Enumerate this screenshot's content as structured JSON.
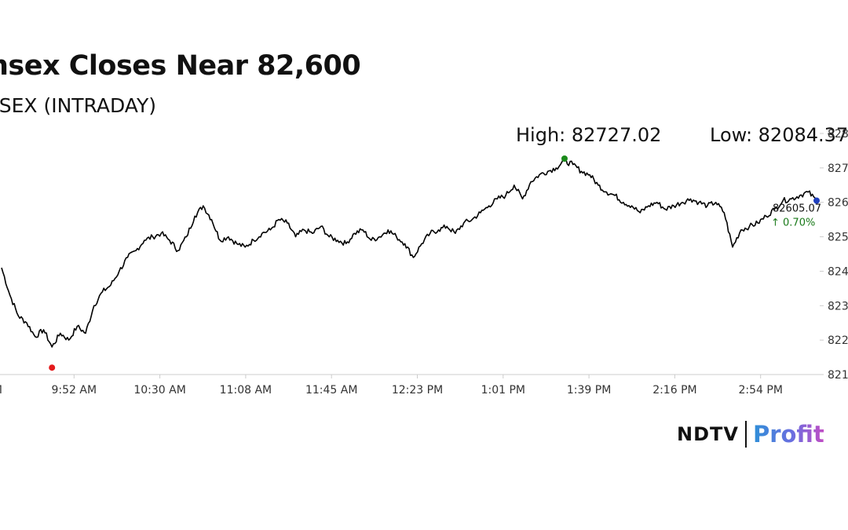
{
  "title": "nsex Closes Near 82,600",
  "subtitle": "NSEX (INTRADAY)",
  "high_label": "High: 82727.02",
  "low_label": "Low: 82084.37",
  "last_value_label": "82605.07",
  "change_label": "↑ 0.70%",
  "logo": {
    "left": "NDTV",
    "right": "Profit"
  },
  "colors": {
    "line": "#000000",
    "high_marker": "#1a8a1a",
    "low_marker": "#e41a1c",
    "last_marker": "#1f3fbf",
    "change": "#1a7a1a",
    "axis": "#cccccc"
  },
  "chart_data": {
    "type": "line",
    "title": "nsex Closes Near 82,600",
    "subtitle": "NSEX (INTRADAY)",
    "xlabel": "",
    "ylabel": "",
    "x_tick_labels": [
      "AM",
      "9:52 AM",
      "10:30 AM",
      "11:08 AM",
      "11:45 AM",
      "12:23 PM",
      "1:01 PM",
      "1:39 PM",
      "2:16 PM",
      "2:54 PM"
    ],
    "y_tick_labels": [
      "821",
      "822",
      "823",
      "824",
      "825",
      "826",
      "827",
      "828"
    ],
    "ylim": [
      82100,
      82800
    ],
    "grid": false,
    "series": [
      {
        "values": [
          82410,
          82330,
          82270,
          82250,
          82210,
          82230,
          82180,
          82220,
          82200,
          82240,
          82220,
          82300,
          82340,
          82360,
          82400,
          82440,
          82460,
          82490,
          82500,
          82510,
          82490,
          82460,
          82500,
          82560,
          82590,
          82550,
          82490,
          82500,
          82480,
          82470,
          82490,
          82510,
          82520,
          82550,
          82540,
          82500,
          82520,
          82510,
          82530,
          82500,
          82490,
          82480,
          82510,
          82520,
          82490,
          82500,
          82520,
          82500,
          82480,
          82440,
          82480,
          82510,
          82520,
          82530,
          82510,
          82540,
          82550,
          82570,
          82590,
          82610,
          82620,
          82650,
          82610,
          82660,
          82680,
          82690,
          82700,
          82720,
          82710,
          82690,
          82680,
          82650,
          82630,
          82620,
          82600,
          82590,
          82570,
          82590,
          82600,
          82580,
          82590,
          82600,
          82610,
          82600,
          82590,
          82600,
          82570,
          82470,
          82520,
          82530,
          82540,
          82560,
          82580,
          82605,
          82610,
          82620,
          82630,
          82605
        ]
      }
    ],
    "annotations": [
      {
        "label": "High: 82727.02",
        "value": 82727.02
      },
      {
        "label": "Low: 82084.37",
        "value": 82084.37
      },
      {
        "label": "82605.07",
        "value": 82605.07
      },
      {
        "label": "↑ 0.70%",
        "value": 0.7
      }
    ]
  }
}
